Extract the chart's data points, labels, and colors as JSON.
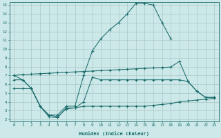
{
  "xlabel": "Humidex (Indice chaleur)",
  "xlim": [
    -0.5,
    23.5
  ],
  "ylim": [
    1.8,
    15.3
  ],
  "yticks": [
    2,
    3,
    4,
    5,
    6,
    7,
    8,
    9,
    10,
    11,
    12,
    13,
    14,
    15
  ],
  "xticks": [
    0,
    1,
    2,
    3,
    4,
    5,
    6,
    7,
    8,
    9,
    10,
    11,
    12,
    13,
    14,
    15,
    16,
    17,
    18,
    19,
    20,
    21,
    22,
    23
  ],
  "bg_color": "#cce8e8",
  "line_color": "#1a6b6b",
  "grid_color": "#aac8c8",
  "line1_x": [
    0,
    1,
    2,
    3,
    4,
    5,
    6,
    7,
    8,
    9,
    10,
    11,
    12,
    13,
    14,
    15,
    16,
    17,
    18
  ],
  "line1_y": [
    7.0,
    6.5,
    5.5,
    3.5,
    2.5,
    2.5,
    3.5,
    3.5,
    7.0,
    9.8,
    11.2,
    12.2,
    13.0,
    14.0,
    15.2,
    15.2,
    15.0,
    13.0,
    11.2
  ],
  "line2_x": [
    0,
    1,
    2,
    3,
    4,
    5,
    6,
    7,
    8,
    9,
    10,
    11,
    12,
    13,
    14,
    15,
    16,
    17,
    18,
    19,
    20,
    21,
    22,
    23
  ],
  "line2_y": [
    7.0,
    7.1,
    7.15,
    7.2,
    7.25,
    7.3,
    7.35,
    7.4,
    7.45,
    7.5,
    7.55,
    7.6,
    7.65,
    7.7,
    7.75,
    7.8,
    7.85,
    7.9,
    7.95,
    8.6,
    6.3,
    5.2,
    4.5,
    4.5
  ],
  "line3_x": [
    0,
    1,
    2,
    3,
    4,
    5,
    6,
    7,
    8,
    9,
    10,
    11,
    12,
    13,
    14,
    15,
    16,
    17,
    18,
    19,
    20,
    21,
    22,
    23
  ],
  "line3_y": [
    5.5,
    5.5,
    5.5,
    3.5,
    2.5,
    2.3,
    3.2,
    3.3,
    3.5,
    3.5,
    3.5,
    3.5,
    3.5,
    3.5,
    3.5,
    3.5,
    3.6,
    3.7,
    3.8,
    4.0,
    4.1,
    4.2,
    4.3,
    4.4
  ],
  "line4_x": [
    0,
    1,
    2,
    3,
    4,
    5,
    6,
    7,
    8,
    9,
    10,
    11,
    12,
    13,
    14,
    15,
    16,
    17,
    18,
    19,
    20,
    21,
    22,
    23
  ],
  "line4_y": [
    6.5,
    6.5,
    5.5,
    3.5,
    2.3,
    2.2,
    3.3,
    3.3,
    4.0,
    6.8,
    6.5,
    6.5,
    6.5,
    6.5,
    6.5,
    6.5,
    6.5,
    6.5,
    6.5,
    6.5,
    6.3,
    5.2,
    4.5,
    4.5
  ]
}
